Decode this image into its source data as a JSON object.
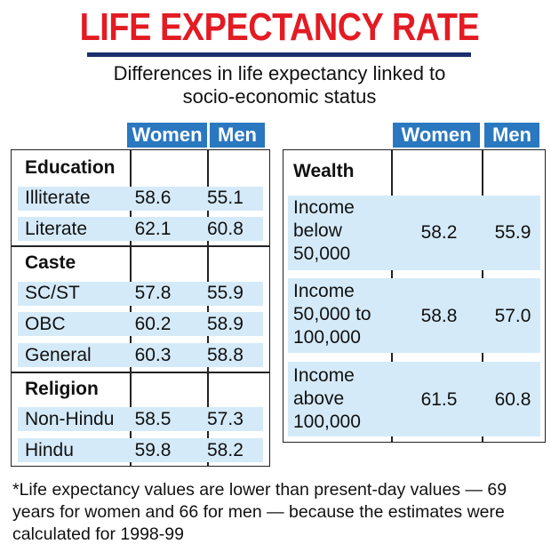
{
  "title": "LIFE EXPECTANCY RATE",
  "subtitle_line1": "Differences in life expectancy linked to",
  "subtitle_line2": "socio-economic status",
  "colors": {
    "title": "#e31b23",
    "rule": "#1a2f6b",
    "header": "#2a78c0",
    "band": "#d5eaf8"
  },
  "chart_data": [
    {
      "type": "table",
      "columns": [
        "Women",
        "Men"
      ],
      "sections": [
        {
          "name": "Education",
          "rows": [
            {
              "label": "Illiterate",
              "women": "58.6",
              "men": "55.1"
            },
            {
              "label": "Literate",
              "women": "62.1",
              "men": "60.8"
            }
          ]
        },
        {
          "name": "Caste",
          "rows": [
            {
              "label": "SC/ST",
              "women": "57.8",
              "men": "55.9"
            },
            {
              "label": "OBC",
              "women": "60.2",
              "men": "58.9"
            },
            {
              "label": "General",
              "women": "60.3",
              "men": "58.8"
            }
          ]
        },
        {
          "name": "Religion",
          "rows": [
            {
              "label": "Non-Hindu",
              "women": "58.5",
              "men": "57.3"
            },
            {
              "label": "Hindu",
              "women": "59.8",
              "men": "58.2"
            }
          ]
        }
      ]
    },
    {
      "type": "table",
      "columns": [
        "Women",
        "Men"
      ],
      "sections": [
        {
          "name": "Wealth",
          "rows": [
            {
              "label_lines": [
                "Income",
                "below",
                "50,000"
              ],
              "women": "58.2",
              "men": "55.9"
            },
            {
              "label_lines": [
                "Income",
                "50,000 to",
                "100,000"
              ],
              "women": "58.8",
              "men": "57.0"
            },
            {
              "label_lines": [
                "Income",
                "above",
                "100,000"
              ],
              "women": "61.5",
              "men": "60.8"
            }
          ]
        }
      ]
    }
  ],
  "footnote": "*Life expectancy values are lower than present-day values — 69 years for women and 66 for men — because the estimates were calculated for 1998-99"
}
